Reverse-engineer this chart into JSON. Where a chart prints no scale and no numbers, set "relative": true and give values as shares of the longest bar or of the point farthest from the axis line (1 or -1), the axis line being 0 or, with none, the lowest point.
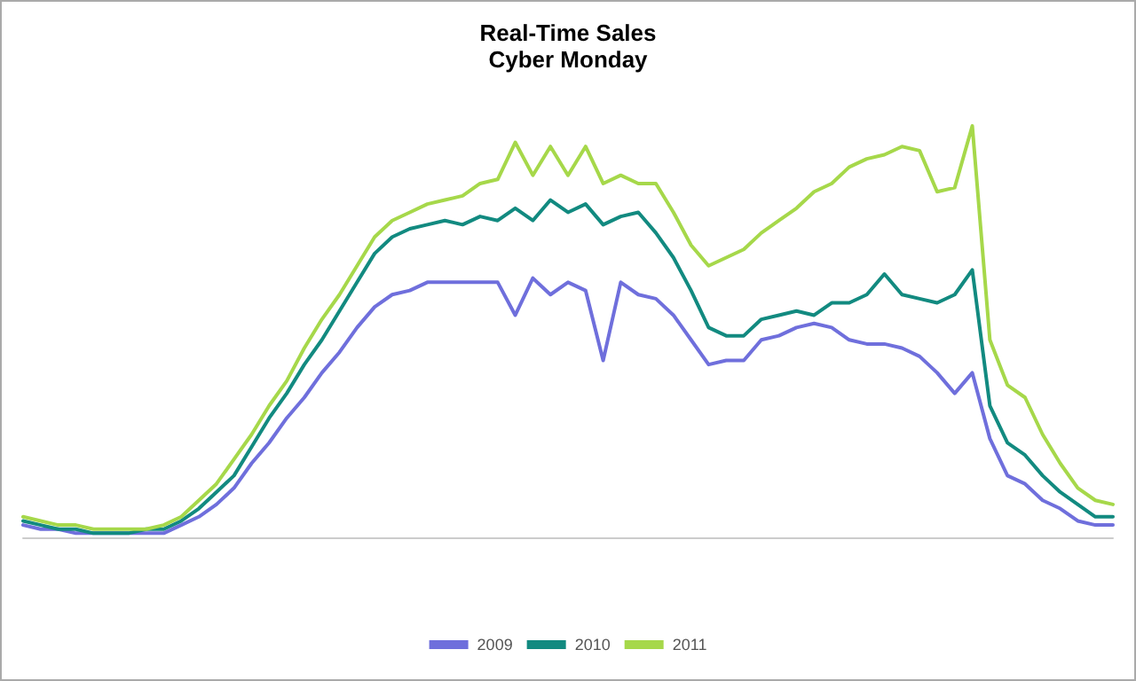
{
  "chart_data": {
    "type": "line",
    "title": "Real-Time Sales",
    "subtitle": "Cyber Monday",
    "relative": true,
    "legend": "bottom",
    "grid": false,
    "marker": "none",
    "line_style": "solid",
    "categories": [
      null,
      null,
      null,
      null,
      null,
      null,
      null,
      null,
      null,
      null,
      null,
      null,
      null,
      null,
      null,
      null,
      null,
      null,
      null,
      null,
      null,
      null,
      null,
      null,
      null,
      null,
      null,
      null,
      null,
      null,
      null,
      null,
      null,
      null,
      null,
      null,
      null,
      null,
      null,
      null,
      null,
      null,
      null,
      null,
      null,
      null,
      null,
      null,
      null,
      null,
      null,
      null,
      null,
      null,
      null,
      null,
      null,
      null,
      null,
      null,
      null,
      null,
      null
    ],
    "series": [
      {
        "name": "2009",
        "color": "#6f6fdc",
        "values": [
          0.03,
          0.02,
          0.02,
          0.01,
          0.01,
          0.01,
          0.01,
          0.01,
          0.01,
          0.03,
          0.05,
          0.08,
          0.12,
          0.18,
          0.23,
          0.29,
          0.34,
          0.4,
          0.45,
          0.51,
          0.56,
          0.59,
          0.6,
          0.62,
          0.62,
          0.62,
          0.62,
          0.62,
          0.54,
          0.63,
          0.59,
          0.62,
          0.6,
          0.43,
          0.62,
          0.59,
          0.58,
          0.54,
          0.48,
          0.42,
          0.43,
          0.43,
          0.48,
          0.49,
          0.51,
          0.52,
          0.51,
          0.48,
          0.47,
          0.47,
          0.46,
          0.44,
          0.4,
          0.35,
          0.4,
          0.24,
          0.15,
          0.13,
          0.09,
          0.07,
          0.04,
          0.03,
          0.03
        ]
      },
      {
        "name": "2010",
        "color": "#128a80",
        "values": [
          0.04,
          0.03,
          0.02,
          0.02,
          0.01,
          0.01,
          0.01,
          0.02,
          0.02,
          0.04,
          0.07,
          0.11,
          0.15,
          0.22,
          0.29,
          0.35,
          0.42,
          0.48,
          0.55,
          0.62,
          0.69,
          0.73,
          0.75,
          0.76,
          0.77,
          0.76,
          0.78,
          0.77,
          0.8,
          0.77,
          0.82,
          0.79,
          0.81,
          0.76,
          0.78,
          0.79,
          0.74,
          0.68,
          0.6,
          0.51,
          0.49,
          0.49,
          0.53,
          0.54,
          0.55,
          0.54,
          0.57,
          0.57,
          0.59,
          0.64,
          0.59,
          0.58,
          0.57,
          0.59,
          0.65,
          0.32,
          0.23,
          0.2,
          0.15,
          0.11,
          0.08,
          0.05,
          0.05
        ]
      },
      {
        "name": "2011",
        "color": "#a6d84a",
        "values": [
          0.05,
          0.04,
          0.03,
          0.03,
          0.02,
          0.02,
          0.02,
          0.02,
          0.03,
          0.05,
          0.09,
          0.13,
          0.19,
          0.25,
          0.32,
          0.38,
          0.46,
          0.53,
          0.59,
          0.66,
          0.73,
          0.77,
          0.79,
          0.81,
          0.82,
          0.83,
          0.86,
          0.87,
          0.96,
          0.88,
          0.95,
          0.88,
          0.95,
          0.86,
          0.88,
          0.86,
          0.86,
          0.79,
          0.71,
          0.66,
          0.68,
          0.7,
          0.74,
          0.77,
          0.8,
          0.84,
          0.86,
          0.9,
          0.92,
          0.93,
          0.95,
          0.94,
          0.84,
          0.85,
          1,
          0.48,
          0.37,
          0.34,
          0.25,
          0.18,
          0.12,
          0.09,
          0.08
        ]
      }
    ]
  }
}
